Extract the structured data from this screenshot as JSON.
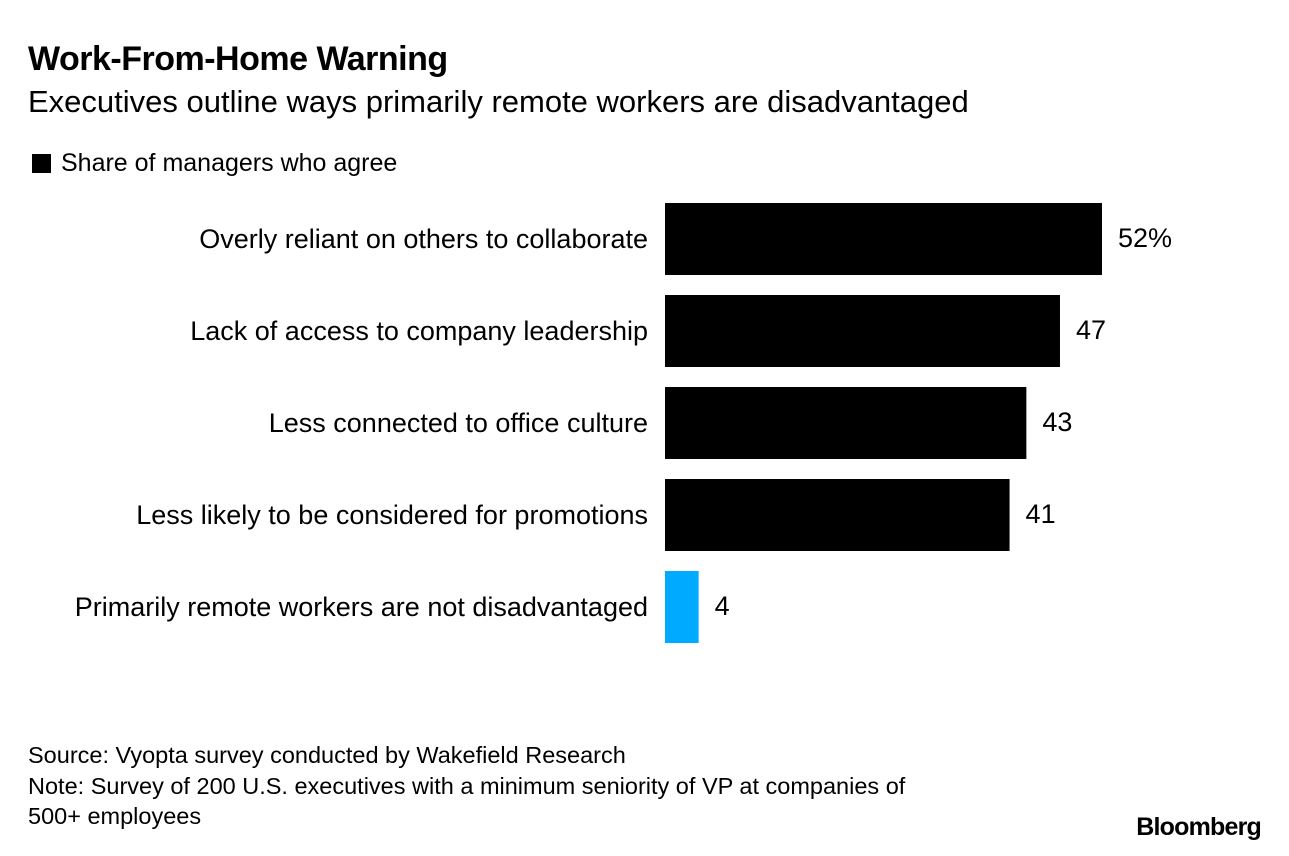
{
  "header": {
    "title": "Work-From-Home Warning",
    "subtitle": "Executives outline ways primarily remote workers are disadvantaged"
  },
  "legend": {
    "label": "Share of managers who agree"
  },
  "chart_data": {
    "type": "bar",
    "orientation": "horizontal",
    "title": "Work-From-Home Warning",
    "subtitle": "Executives outline ways primarily remote workers are disadvantaged",
    "series": [
      {
        "name": "Share of managers who agree",
        "unit": "%"
      }
    ],
    "categories": [
      "Overly reliant on others to collaborate",
      "Lack of access to company leadership",
      "Less connected to office culture",
      "Less likely to be considered for promotions",
      "Primarily remote workers are not disadvantaged"
    ],
    "values": [
      52,
      47,
      43,
      41,
      4
    ],
    "value_labels": [
      "52%",
      "47",
      "43",
      "41",
      "4"
    ],
    "colors": [
      "#000000",
      "#000000",
      "#000000",
      "#000000",
      "#00aaff"
    ],
    "xlim": [
      0,
      52
    ],
    "xlabel": "",
    "ylabel": "",
    "grid": false
  },
  "colors": {
    "bar_default": "#000000",
    "bar_highlight": "#00aaff",
    "text": "#000000",
    "background": "#ffffff"
  },
  "footer": {
    "source": "Source: Vyopta survey conducted by Wakefield Research",
    "note_line1": "Note: Survey of 200 U.S. executives with a minimum seniority of VP at companies of",
    "note_line2": "500+ employees",
    "brand": "Bloomberg"
  }
}
